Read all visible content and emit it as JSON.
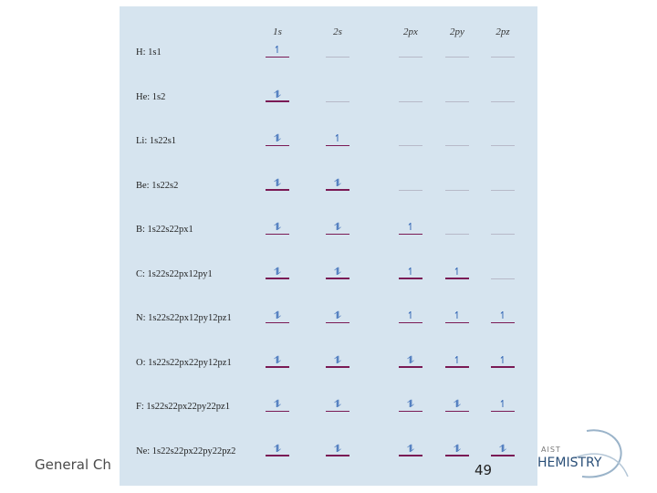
{
  "footer": {
    "left_text": "General Ch",
    "page_number": "49"
  },
  "logo": {
    "small_text": "AIST",
    "big_text": "HEMISTRY"
  },
  "table": {
    "columns": [
      "1s",
      "2s",
      "2px",
      "2py",
      "2pz"
    ],
    "rows": [
      {
        "label": "H: 1s1",
        "slots": [
          "↿",
          "",
          "",
          "",
          ""
        ]
      },
      {
        "label": "He: 1s2",
        "slots": [
          "⥮",
          "",
          "",
          "",
          ""
        ]
      },
      {
        "label": "Li: 1s22s1",
        "slots": [
          "⥮",
          "↿",
          "",
          "",
          ""
        ]
      },
      {
        "label": "Be: 1s22s2",
        "slots": [
          "⥮",
          "⥮",
          "",
          "",
          ""
        ]
      },
      {
        "label": "B: 1s22s22px1",
        "slots": [
          "⥮",
          "⥮",
          "↿",
          "",
          ""
        ]
      },
      {
        "label": "C: 1s22s22px12py1",
        "slots": [
          "⥮",
          "⥮",
          "↿",
          "↿",
          ""
        ]
      },
      {
        "label": "N: 1s22s22px12py12pz1",
        "slots": [
          "⥮",
          "⥮",
          "↿",
          "↿",
          "↿"
        ]
      },
      {
        "label": "O: 1s22s22px22py12pz1",
        "slots": [
          "⥮",
          "⥮",
          "⥮",
          "↿",
          "↿"
        ]
      },
      {
        "label": "F: 1s22s22px22py22pz1",
        "slots": [
          "⥮",
          "⥮",
          "⥮",
          "⥮",
          "↿"
        ]
      },
      {
        "label": "Ne: 1s22s22px22py22pz2",
        "slots": [
          "⥮",
          "⥮",
          "⥮",
          "⥮",
          "⥮"
        ]
      }
    ]
  }
}
